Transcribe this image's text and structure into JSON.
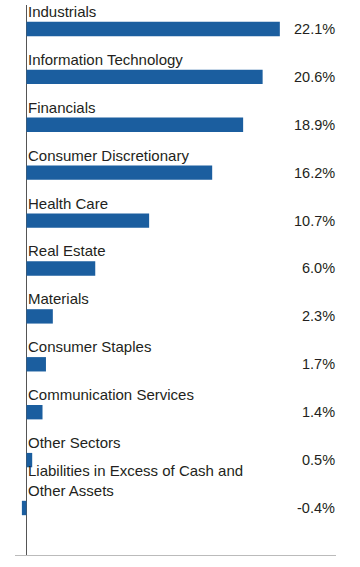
{
  "chart_data": {
    "type": "bar",
    "orientation": "horizontal",
    "categories": [
      "Industrials",
      "Information Technology",
      "Financials",
      "Consumer Discretionary",
      "Health Care",
      "Real Estate",
      "Materials",
      "Consumer Staples",
      "Communication Services",
      "Other Sectors",
      "Liabilities in Excess of Cash and\nOther Assets"
    ],
    "values": [
      22.1,
      20.6,
      18.9,
      16.2,
      10.7,
      6.0,
      2.3,
      1.7,
      1.4,
      0.5,
      -0.4
    ],
    "value_labels": [
      "22.1%",
      "20.6%",
      "18.9%",
      "16.2%",
      "10.7%",
      "6.0%",
      "2.3%",
      "1.7%",
      "1.4%",
      "0.5%",
      "-0.4%"
    ],
    "color": "#1b5e9f",
    "xlim": [
      -1,
      27
    ],
    "xticks": [
      0
    ],
    "grid": false,
    "tick_labels": false,
    "data_labels": true
  }
}
